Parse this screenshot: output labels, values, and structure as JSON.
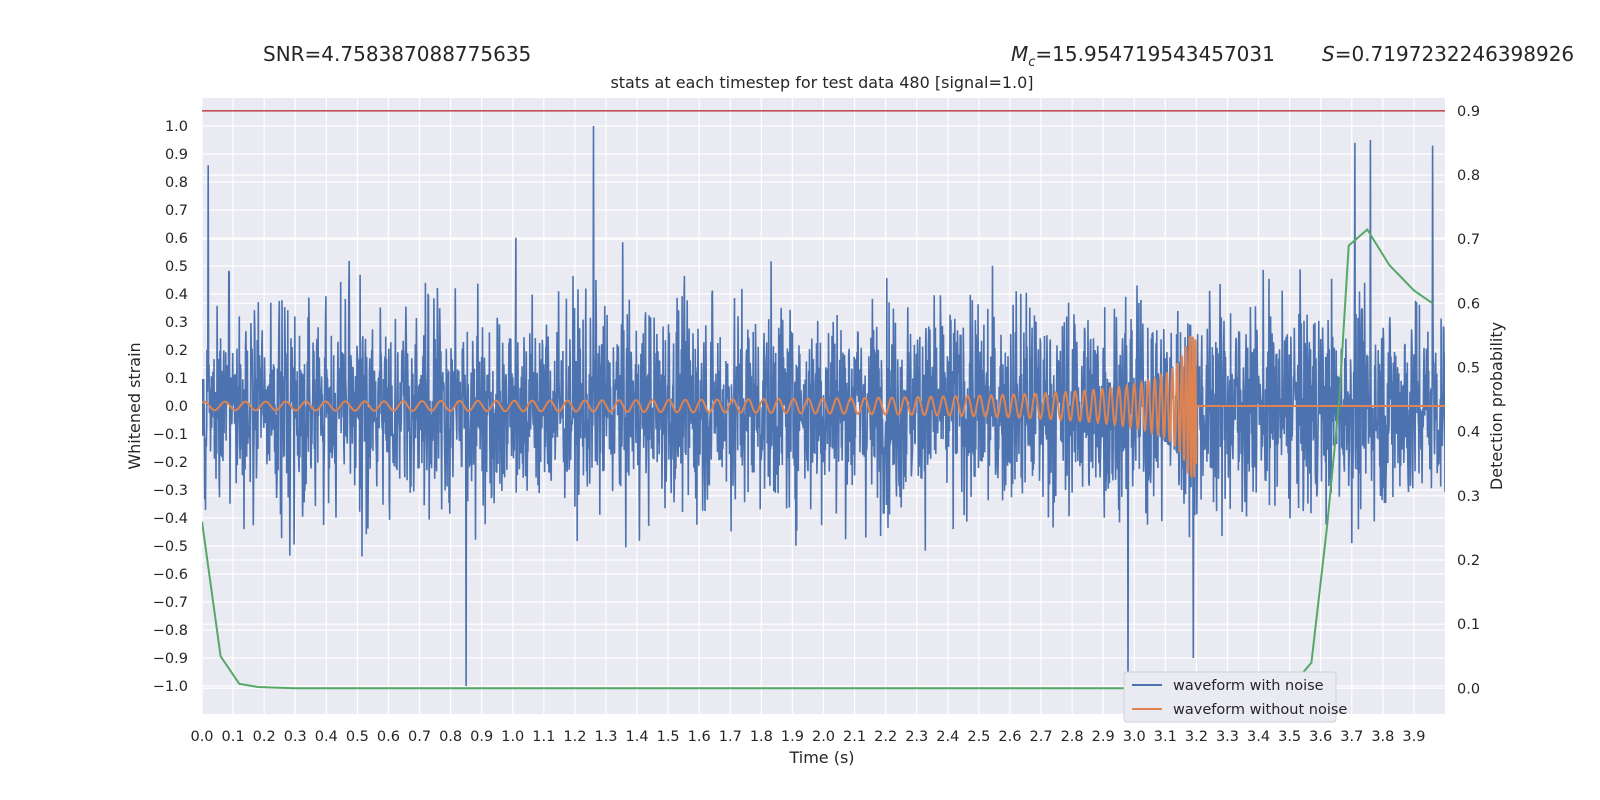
{
  "header": {
    "snr": "SNR=4.758387088775635",
    "mc_symbol": "M",
    "mc_subscript": "c",
    "mc_value": "=15.954719543457031",
    "s_symbol": "S",
    "s_value": "=0.7197232246398926"
  },
  "colors": {
    "background": "#eaeaf2",
    "grid": "#ffffff",
    "noisy": "#4c72b0",
    "clean": "#dd8452",
    "probability": "#55a868",
    "threshold": "#c44e52"
  },
  "chart_data": {
    "type": "line",
    "title": "stats at each timestep for test data 480 [signal=1.0]",
    "xlabel": "Time (s)",
    "ylabel": "Whitened strain",
    "y2label": "Detection probability",
    "xlim": [
      0.0,
      4.0
    ],
    "ylim": [
      -1.1,
      1.1
    ],
    "y2lim": [
      -0.04,
      0.92
    ],
    "x_ticks": [
      "0.0",
      "0.1",
      "0.2",
      "0.3",
      "0.4",
      "0.5",
      "0.6",
      "0.7",
      "0.8",
      "0.9",
      "1.0",
      "1.1",
      "1.2",
      "1.3",
      "1.4",
      "1.5",
      "1.6",
      "1.7",
      "1.8",
      "1.9",
      "2.0",
      "2.1",
      "2.2",
      "2.3",
      "2.4",
      "2.5",
      "2.6",
      "2.7",
      "2.8",
      "2.9",
      "3.0",
      "3.1",
      "3.2",
      "3.3",
      "3.4",
      "3.5",
      "3.6",
      "3.7",
      "3.8",
      "3.9"
    ],
    "y_ticks": [
      "1.0",
      "0.9",
      "0.8",
      "0.7",
      "0.6",
      "0.5",
      "0.4",
      "0.3",
      "0.2",
      "0.1",
      "0.0",
      "−0.1",
      "−0.2",
      "−0.3",
      "−0.4",
      "−0.5",
      "−0.6",
      "−0.7",
      "−0.8",
      "−0.9",
      "−1.0"
    ],
    "y2_ticks": [
      "0.9",
      "0.8",
      "0.7",
      "0.6",
      "0.5",
      "0.4",
      "0.3",
      "0.2",
      "0.1",
      "0.0"
    ],
    "grid": true,
    "legend_position": "bottom-right",
    "series": [
      {
        "name": "waveform with noise",
        "axis": "left",
        "description_values": "dense noise between about -1.0 and 1.0",
        "notable_peaks": [
          {
            "x": 0.02,
            "y": 0.86
          },
          {
            "x": 1.26,
            "y": 1.0
          },
          {
            "x": 0.85,
            "y": -1.0
          },
          {
            "x": 3.71,
            "y": 0.94
          },
          {
            "x": 3.76,
            "y": 0.95
          },
          {
            "x": 3.96,
            "y": 0.93
          },
          {
            "x": 3.19,
            "y": -0.9
          },
          {
            "x": 2.98,
            "y": -1.0
          }
        ]
      },
      {
        "name": "waveform without noise",
        "axis": "left",
        "chirp": {
          "start": 0.0,
          "merger": 3.2,
          "amplitude_start": 0.015,
          "amplitude_peak": 0.26
        }
      },
      {
        "axis": "right",
        "x": [
          0.0,
          0.06,
          0.12,
          0.18,
          0.25,
          0.3,
          0.5,
          1.0,
          2.0,
          3.0,
          3.5,
          3.57,
          3.62,
          3.66,
          3.69,
          3.75,
          3.82,
          3.9,
          3.96
        ],
        "y": [
          0.26,
          0.05,
          0.007,
          0.002,
          0.001,
          0.0,
          0.0,
          0.0,
          0.0,
          0.0,
          0.0,
          0.04,
          0.25,
          0.45,
          0.69,
          0.715,
          0.66,
          0.62,
          0.6
        ]
      },
      {
        "axis": "right",
        "constant": 0.9
      }
    ]
  }
}
